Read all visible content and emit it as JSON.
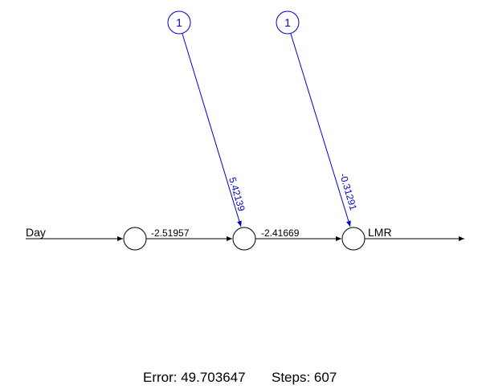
{
  "network": {
    "input_label": "Day",
    "output_label": "LMR",
    "bias_node_label_1": "1",
    "bias_node_label_2": "1",
    "weight_input_hidden": "-2.51957",
    "weight_hidden_output": "-2.41669",
    "weight_bias_hidden": "5.42139",
    "weight_bias_output": "-0.31291"
  },
  "footer": {
    "error_text": "Error: 49.703647",
    "steps_text": "Steps: 607"
  },
  "colors": {
    "main": "#000000",
    "bias": "#0000cd"
  }
}
